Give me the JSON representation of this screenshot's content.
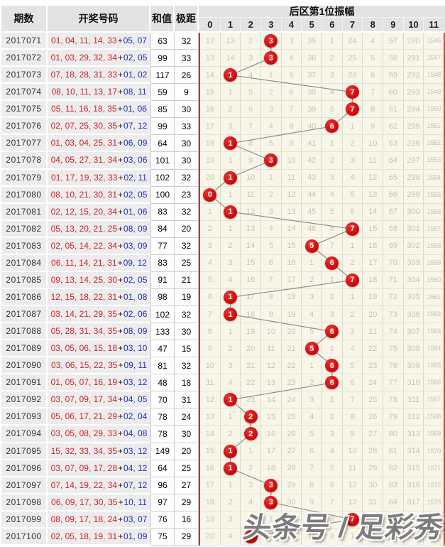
{
  "table": {
    "headers": {
      "period": "期数",
      "numbers": "开奖号码",
      "sum": "和值",
      "range": "极距",
      "amplitude": "后区第1位振幅"
    },
    "amp_columns": [
      "0",
      "1",
      "2",
      "3",
      "4",
      "5",
      "6",
      "7",
      "8",
      "9",
      "10",
      "11"
    ],
    "plus": "+"
  },
  "watermark": "头条号 / 足彩秀",
  "colors": {
    "ball_red": "#cb0707",
    "front_number_red": "#cc2222",
    "back_number_blue": "#2230bb",
    "grid_background": "#f8f5e9",
    "grid_accent_line": "#9c4040",
    "header_gray": "#e3e3e3",
    "trend_line_gray": "#8f8f8f"
  },
  "chart_data": {
    "type": "table",
    "title": "后区第1位振幅",
    "columns": [
      "期数",
      "开奖号码",
      "和值",
      "极距",
      "0",
      "1",
      "2",
      "3",
      "4",
      "5",
      "6",
      "7",
      "8",
      "9",
      "10",
      "11"
    ],
    "amplitude_series": [
      3,
      3,
      1,
      7,
      7,
      6,
      1,
      3,
      1,
      0,
      1,
      7,
      5,
      6,
      7,
      1,
      1,
      6,
      5,
      6,
      6,
      1,
      2,
      2,
      1,
      1,
      3,
      3,
      7,
      2
    ],
    "rows": [
      {
        "period": "2017071",
        "front": "01, 04, 11, 14, 33",
        "back": "05, 07",
        "sum": 63,
        "range": 32,
        "amplitude": 3,
        "ball_col": 3,
        "cells": [
          "12",
          "13",
          "2",
          "3",
          "3",
          "35",
          "1",
          "24",
          "4",
          "57",
          "290",
          "1546"
        ]
      },
      {
        "period": "2017072",
        "front": "01, 03, 29, 32, 34",
        "back": "02, 05",
        "sum": 99,
        "range": 33,
        "amplitude": 3,
        "ball_col": 3,
        "cells": [
          "13",
          "14",
          "3",
          "3",
          "4",
          "36",
          "2",
          "25",
          "5",
          "58",
          "291",
          "1547"
        ]
      },
      {
        "period": "2017073",
        "front": "07, 18, 28, 31, 33",
        "back": "01, 02",
        "sum": 117,
        "range": 26,
        "amplitude": 1,
        "ball_col": 1,
        "cells": [
          "14",
          "1",
          "4",
          "1",
          "5",
          "37",
          "3",
          "26",
          "6",
          "59",
          "292",
          "1548"
        ]
      },
      {
        "period": "2017074",
        "front": "08, 10, 11, 13, 17",
        "back": "08, 11",
        "sum": 59,
        "range": 9,
        "amplitude": 7,
        "ball_col": 7,
        "cells": [
          "15",
          "1",
          "5",
          "2",
          "6",
          "38",
          "4",
          "7",
          "7",
          "60",
          "293",
          "1549"
        ]
      },
      {
        "period": "2017075",
        "front": "05, 11, 16, 18, 35",
        "back": "01, 06",
        "sum": 85,
        "range": 30,
        "amplitude": 7,
        "ball_col": 7,
        "cells": [
          "16",
          "2",
          "6",
          "3",
          "7",
          "39",
          "5",
          "7",
          "8",
          "61",
          "294",
          "1550"
        ]
      },
      {
        "period": "2017076",
        "front": "02, 07, 25, 30, 35",
        "back": "07, 12",
        "sum": 99,
        "range": 33,
        "amplitude": 6,
        "ball_col": 6,
        "cells": [
          "17",
          "3",
          "7",
          "4",
          "8",
          "40",
          "6",
          "1",
          "9",
          "62",
          "295",
          "1551"
        ]
      },
      {
        "period": "2017077",
        "front": "01, 03, 04, 25, 31",
        "back": "06, 09",
        "sum": 64,
        "range": 30,
        "amplitude": 1,
        "ball_col": 1,
        "cells": [
          "18",
          "1",
          "8",
          "5",
          "9",
          "41",
          "1",
          "2",
          "10",
          "63",
          "296",
          "1552"
        ]
      },
      {
        "period": "2017078",
        "front": "04, 05, 27, 31, 34",
        "back": "03, 06",
        "sum": 101,
        "range": 30,
        "amplitude": 3,
        "ball_col": 3,
        "cells": [
          "19",
          "1",
          "9",
          "3",
          "10",
          "42",
          "2",
          "3",
          "11",
          "64",
          "297",
          "1553"
        ]
      },
      {
        "period": "2017079",
        "front": "01, 17, 19, 32, 33",
        "back": "02, 11",
        "sum": 102,
        "range": 32,
        "amplitude": 1,
        "ball_col": 1,
        "cells": [
          "20",
          "1",
          "10",
          "1",
          "11",
          "43",
          "3",
          "4",
          "12",
          "65",
          "298",
          "1554"
        ]
      },
      {
        "period": "2017080",
        "front": "08, 10, 21, 30, 31",
        "back": "02, 05",
        "sum": 100,
        "range": 23,
        "amplitude": 0,
        "ball_col": 0,
        "cells": [
          "0",
          "1",
          "11",
          "2",
          "12",
          "44",
          "4",
          "5",
          "13",
          "66",
          "299",
          "1555"
        ]
      },
      {
        "period": "2017081",
        "front": "02, 12, 15, 20, 34",
        "back": "01, 06",
        "sum": 83,
        "range": 32,
        "amplitude": 1,
        "ball_col": 1,
        "cells": [
          "1",
          "1",
          "12",
          "3",
          "13",
          "45",
          "5",
          "6",
          "14",
          "67",
          "300",
          "1556"
        ]
      },
      {
        "period": "2017082",
        "front": "05, 13, 20, 21, 25",
        "back": "08, 09",
        "sum": 84,
        "range": 20,
        "amplitude": 7,
        "ball_col": 7,
        "cells": [
          "2",
          "1",
          "13",
          "4",
          "14",
          "46",
          "6",
          "7",
          "15",
          "68",
          "301",
          "1557"
        ]
      },
      {
        "period": "2017083",
        "front": "02, 05, 14, 22, 34",
        "back": "03, 09",
        "sum": 77,
        "range": 32,
        "amplitude": 5,
        "ball_col": 5,
        "cells": [
          "3",
          "2",
          "14",
          "5",
          "15",
          "5",
          "7",
          "1",
          "16",
          "69",
          "302",
          "1558"
        ]
      },
      {
        "period": "2017084",
        "front": "06, 11, 14, 21, 31",
        "back": "09, 12",
        "sum": 83,
        "range": 25,
        "amplitude": 6,
        "ball_col": 6,
        "cells": [
          "4",
          "3",
          "15",
          "6",
          "16",
          "1",
          "6",
          "2",
          "17",
          "70",
          "303",
          "1559"
        ]
      },
      {
        "period": "2017085",
        "front": "09, 13, 14, 25, 30",
        "back": "02, 05",
        "sum": 91,
        "range": 21,
        "amplitude": 7,
        "ball_col": 7,
        "cells": [
          "5",
          "4",
          "16",
          "7",
          "17",
          "2",
          "1",
          "7",
          "18",
          "71",
          "304",
          "1560"
        ]
      },
      {
        "period": "2017086",
        "front": "12, 15, 18, 22, 31",
        "back": "01, 08",
        "sum": 98,
        "range": 19,
        "amplitude": 1,
        "ball_col": 1,
        "cells": [
          "6",
          "1",
          "17",
          "8",
          "18",
          "3",
          "2",
          "1",
          "19",
          "72",
          "305",
          "1561"
        ]
      },
      {
        "period": "2017087",
        "front": "03, 14, 21, 29, 35",
        "back": "02, 06",
        "sum": 102,
        "range": 32,
        "amplitude": 1,
        "ball_col": 1,
        "cells": [
          "7",
          "1",
          "18",
          "9",
          "19",
          "4",
          "3",
          "2",
          "20",
          "73",
          "306",
          "1562"
        ]
      },
      {
        "period": "2017088",
        "front": "05, 28, 31, 34, 35",
        "back": "08, 09",
        "sum": 133,
        "range": 30,
        "amplitude": 6,
        "ball_col": 6,
        "cells": [
          "8",
          "1",
          "19",
          "10",
          "20",
          "5",
          "6",
          "3",
          "21",
          "74",
          "307",
          "1563"
        ]
      },
      {
        "period": "2017089",
        "front": "03, 05, 06, 15, 18",
        "back": "03, 10",
        "sum": 47,
        "range": 15,
        "amplitude": 5,
        "ball_col": 5,
        "cells": [
          "9",
          "2",
          "20",
          "11",
          "21",
          "5",
          "1",
          "4",
          "22",
          "75",
          "308",
          "1564"
        ]
      },
      {
        "period": "2017090",
        "front": "03, 06, 15, 22, 35",
        "back": "09, 11",
        "sum": 81,
        "range": 32,
        "amplitude": 6,
        "ball_col": 6,
        "cells": [
          "10",
          "3",
          "21",
          "12",
          "22",
          "1",
          "6",
          "5",
          "23",
          "76",
          "309",
          "1565"
        ]
      },
      {
        "period": "2017091",
        "front": "01, 05, 07, 16, 19",
        "back": "03, 12",
        "sum": 48,
        "range": 18,
        "amplitude": 6,
        "ball_col": 6,
        "cells": [
          "11",
          "4",
          "22",
          "13",
          "23",
          "2",
          "6",
          "6",
          "24",
          "77",
          "310",
          "1566"
        ]
      },
      {
        "period": "2017092",
        "front": "03, 07, 09, 17, 34",
        "back": "04, 05",
        "sum": 70,
        "range": 31,
        "amplitude": 1,
        "ball_col": 1,
        "cells": [
          "12",
          "1",
          "23",
          "14",
          "24",
          "3",
          "1",
          "7",
          "25",
          "78",
          "311",
          "1567"
        ]
      },
      {
        "period": "2017093",
        "front": "05, 06, 17, 21, 29",
        "back": "02, 04",
        "sum": 78,
        "range": 24,
        "amplitude": 2,
        "ball_col": 2,
        "cells": [
          "13",
          "1",
          "2",
          "15",
          "25",
          "4",
          "2",
          "8",
          "26",
          "79",
          "312",
          "1568"
        ]
      },
      {
        "period": "2017094",
        "front": "03, 05, 08, 29, 33",
        "back": "04, 08",
        "sum": 78,
        "range": 30,
        "amplitude": 2,
        "ball_col": 2,
        "cells": [
          "14",
          "2",
          "2",
          "16",
          "26",
          "5",
          "3",
          "9",
          "27",
          "80",
          "313",
          "1569"
        ]
      },
      {
        "period": "2017095",
        "front": "15, 32, 33, 34, 35",
        "back": "03, 12",
        "sum": 149,
        "range": 20,
        "amplitude": 1,
        "ball_col": 1,
        "cells": [
          "15",
          "1",
          "1",
          "17",
          "27",
          "6",
          "4",
          "10",
          "28",
          "81",
          "314",
          "1570"
        ]
      },
      {
        "period": "2017096",
        "front": "03, 07, 09, 17, 28",
        "back": "04, 12",
        "sum": 64,
        "range": 25,
        "amplitude": 1,
        "ball_col": 1,
        "cells": [
          "16",
          "1",
          "2",
          "18",
          "28",
          "7",
          "5",
          "11",
          "29",
          "82",
          "315",
          "1571"
        ]
      },
      {
        "period": "2017097",
        "front": "07, 14, 19, 22, 34",
        "back": "07, 12",
        "sum": 96,
        "range": 27,
        "amplitude": 3,
        "ball_col": 3,
        "cells": [
          "17",
          "1",
          "3",
          "3",
          "29",
          "8",
          "6",
          "12",
          "30",
          "83",
          "316",
          "1572"
        ]
      },
      {
        "period": "2017098",
        "front": "06, 09, 17, 30, 35",
        "back": "10, 11",
        "sum": 97,
        "range": 29,
        "amplitude": 3,
        "ball_col": 3,
        "cells": [
          "18",
          "2",
          "4",
          "3",
          "30",
          "9",
          "7",
          "13",
          "31",
          "84",
          "317",
          "1573"
        ]
      },
      {
        "period": "2017099",
        "front": "08, 09, 17, 18, 24",
        "back": "03, 07",
        "sum": 76,
        "range": 16,
        "amplitude": 7,
        "ball_col": 7,
        "cells": [
          "19",
          "3",
          "5",
          "1",
          "31",
          "10",
          "8",
          "7",
          "32",
          "85",
          "318",
          "1574"
        ]
      },
      {
        "period": "2017100",
        "front": "02, 05, 18, 19, 31",
        "back": "01, 09",
        "sum": 75,
        "range": 29,
        "amplitude": 2,
        "ball_col": 2,
        "cells": [
          "20",
          "4",
          "2",
          "2",
          "32",
          "11",
          "9",
          "1",
          "33",
          "86",
          "319",
          "1575"
        ]
      }
    ]
  }
}
